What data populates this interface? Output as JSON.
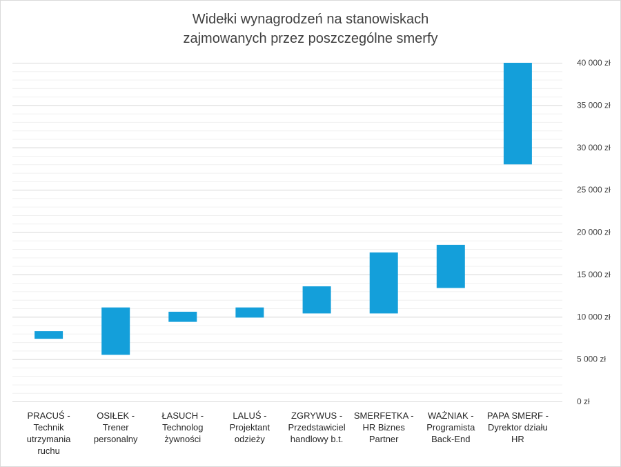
{
  "chart_data": {
    "type": "bar",
    "subtype": "floating-range",
    "title": "Widełki wynagrodzeń na stanowiskach",
    "subtitle": "zajmowanych przez poszczególne smerfy",
    "xlabel": "",
    "ylabel": "",
    "ylim": [
      0,
      40000
    ],
    "y_axis_side": "right",
    "y_ticks": [
      0,
      5000,
      10000,
      15000,
      20000,
      25000,
      30000,
      35000,
      40000
    ],
    "y_tick_labels": [
      "0 zł",
      "5 000 zł",
      "10 000 zł",
      "15 000 zł",
      "20 000 zł",
      "25 000 zł",
      "30 000 zł",
      "35 000 zł",
      "40 000 zł"
    ],
    "minor_grid_step": 1000,
    "grid": true,
    "bar_color": "#149fda",
    "categories": [
      [
        "PRACUŚ -",
        "Technik",
        "utrzymania",
        "ruchu"
      ],
      [
        "OSIŁEK - Trener",
        "personalny"
      ],
      [
        "ŁASUCH -",
        "Technolog",
        "żywności"
      ],
      [
        "LALUŚ -",
        "Projektant",
        "odzieży"
      ],
      [
        "ZGRYWUS -",
        "Przedstawiciel",
        "handlowy b.t."
      ],
      [
        "SMERFETKA -",
        "HR Biznes",
        "Partner"
      ],
      [
        "WAŻNIAK -",
        "Programista",
        "Back-End"
      ],
      [
        "PAPA SMERF -",
        "Dyrektor działu",
        "HR"
      ]
    ],
    "ranges": [
      [
        7400,
        8300
      ],
      [
        5500,
        11100
      ],
      [
        9400,
        10600
      ],
      [
        9900,
        11100
      ],
      [
        10400,
        13600
      ],
      [
        10400,
        17600
      ],
      [
        13400,
        18500
      ],
      [
        28000,
        40000
      ]
    ]
  }
}
